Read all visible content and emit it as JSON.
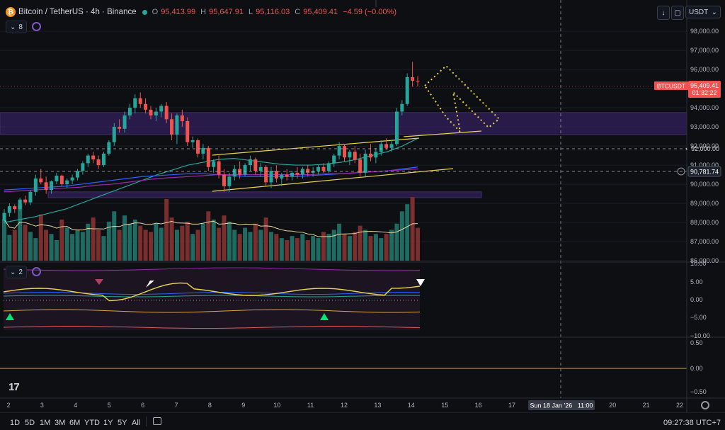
{
  "header": {
    "symbol_title": "Bitcoin / TetherUS · 4h · Binance",
    "ohlc": [
      {
        "k": "O",
        "v": "95,413.99"
      },
      {
        "k": "H",
        "v": "95,647.91"
      },
      {
        "k": "L",
        "v": "95,116.03"
      },
      {
        "k": "C",
        "v": "95,409.41"
      }
    ],
    "change": "−4.59 (−0.00%)",
    "indicator_count": "8",
    "currency": "USDT"
  },
  "oscillator_pane": {
    "indicator_count": "2"
  },
  "colors": {
    "up": "#26a69a",
    "down": "#ef5350",
    "zone": "#4b2a8c",
    "channel": "#e8d44d",
    "background": "#0e0f13"
  },
  "chart_data": [
    {
      "type": "candlestick",
      "symbol": "BTCUSDT",
      "timeframe": "4h",
      "price_axis": {
        "ticks": [
          "98,000.00",
          "97,000.00",
          "96,000.00",
          "95,000.00",
          "94,000.00",
          "93,000.00",
          "92,000.00",
          "91,000.00",
          "90,000.00",
          "89,000.00",
          "88,000.00",
          "87,000.00",
          "86,000.00"
        ],
        "range": [
          86000,
          98600
        ]
      },
      "time_axis": {
        "ticks": [
          "2",
          "3",
          "4",
          "5",
          "6",
          "7",
          "8",
          "9",
          "10",
          "11",
          "12",
          "13",
          "14",
          "15",
          "16",
          "17",
          "18",
          "19",
          "20",
          "21",
          "22"
        ],
        "crosshair_label": "Sun 18 Jan '26   11:00"
      },
      "last_price": {
        "label": "BTCUSDT",
        "value": "95,409.41",
        "countdown": "01:32:22"
      },
      "level_labels": [
        {
          "value": "92,000.00"
        },
        {
          "value": "90,781.74"
        }
      ],
      "zones": [
        {
          "from": 92600,
          "to": 93750
        },
        {
          "from": 89300,
          "to": 89600
        }
      ],
      "ohlc": [
        [
          88100,
          88700,
          87950,
          88500
        ],
        [
          88500,
          89000,
          88300,
          88850
        ],
        [
          88850,
          88950,
          88500,
          88700
        ],
        [
          88700,
          89300,
          88600,
          89200
        ],
        [
          89200,
          89400,
          88900,
          89050
        ],
        [
          89050,
          89700,
          88900,
          89600
        ],
        [
          89600,
          90500,
          89400,
          90300
        ],
        [
          90300,
          90800,
          90000,
          90100
        ],
        [
          90100,
          90400,
          89500,
          89700
        ],
        [
          89700,
          90200,
          89500,
          90150
        ],
        [
          90150,
          90600,
          90000,
          90450
        ],
        [
          90450,
          90500,
          89900,
          90000
        ],
        [
          90000,
          90300,
          89800,
          90200
        ],
        [
          90200,
          90500,
          90000,
          90350
        ],
        [
          90350,
          90800,
          90200,
          90700
        ],
        [
          90700,
          91200,
          90500,
          91100
        ],
        [
          91100,
          91600,
          90900,
          91500
        ],
        [
          91500,
          91700,
          91100,
          91300
        ],
        [
          91300,
          91500,
          90800,
          91000
        ],
        [
          91000,
          91700,
          90900,
          91600
        ],
        [
          91600,
          92300,
          91500,
          92200
        ],
        [
          92200,
          93200,
          92000,
          93000
        ],
        [
          93000,
          93400,
          92700,
          92900
        ],
        [
          92900,
          93800,
          92700,
          93600
        ],
        [
          93600,
          94200,
          93400,
          94000
        ],
        [
          94000,
          94700,
          93700,
          94500
        ],
        [
          94500,
          94800,
          94000,
          94200
        ],
        [
          94200,
          94500,
          93700,
          93900
        ],
        [
          93900,
          94100,
          93400,
          93600
        ],
        [
          93600,
          94000,
          93300,
          93800
        ],
        [
          93800,
          94200,
          93500,
          94100
        ],
        [
          94100,
          94300,
          93200,
          93400
        ],
        [
          93400,
          93700,
          92300,
          92600
        ],
        [
          92600,
          93700,
          92100,
          93600
        ],
        [
          93600,
          93900,
          93000,
          93300
        ],
        [
          93300,
          93500,
          92000,
          92200
        ],
        [
          92200,
          92500,
          91900,
          92300
        ],
        [
          92300,
          92400,
          91400,
          91600
        ],
        [
          91600,
          92100,
          91300,
          91900
        ],
        [
          91900,
          92000,
          90700,
          90900
        ],
        [
          90900,
          91300,
          90600,
          91200
        ],
        [
          91200,
          91500,
          90300,
          90500
        ],
        [
          90500,
          90800,
          89600,
          89900
        ],
        [
          89900,
          90600,
          89600,
          90400
        ],
        [
          90400,
          91000,
          90200,
          90800
        ],
        [
          90800,
          91200,
          90300,
          90500
        ],
        [
          90500,
          91100,
          90400,
          91000
        ],
        [
          91000,
          91500,
          90700,
          91300
        ],
        [
          91300,
          91400,
          90500,
          90700
        ],
        [
          90700,
          91100,
          90400,
          90900
        ],
        [
          90900,
          91000,
          89900,
          90100
        ],
        [
          90100,
          90900,
          89800,
          90700
        ],
        [
          90700,
          91000,
          90100,
          90300
        ],
        [
          90300,
          90600,
          89900,
          90500
        ],
        [
          90500,
          90800,
          90200,
          90400
        ],
        [
          90400,
          90700,
          90200,
          90600
        ],
        [
          90600,
          90900,
          90300,
          90500
        ],
        [
          90500,
          90900,
          90300,
          90800
        ],
        [
          90800,
          91000,
          90400,
          90600
        ],
        [
          90600,
          90900,
          90400,
          90700
        ],
        [
          90700,
          91000,
          90500,
          90900
        ],
        [
          90900,
          91100,
          90600,
          90700
        ],
        [
          90700,
          91200,
          90600,
          91100
        ],
        [
          91100,
          91600,
          90900,
          91500
        ],
        [
          91500,
          92200,
          91300,
          92000
        ],
        [
          92000,
          92100,
          91200,
          91400
        ],
        [
          91400,
          91800,
          91000,
          91700
        ],
        [
          91700,
          92000,
          91100,
          91300
        ],
        [
          91300,
          91600,
          90400,
          90600
        ],
        [
          90600,
          91800,
          90400,
          91600
        ],
        [
          91600,
          92100,
          91200,
          91400
        ],
        [
          91400,
          91900,
          91100,
          91700
        ],
        [
          91700,
          92300,
          91500,
          92100
        ],
        [
          92100,
          92400,
          91800,
          91900
        ],
        [
          91900,
          92300,
          91700,
          92100
        ],
        [
          92100,
          94000,
          92000,
          93800
        ],
        [
          93800,
          94400,
          93600,
          94200
        ],
        [
          94200,
          95800,
          94100,
          95600
        ],
        [
          95600,
          96400,
          95100,
          95413.99
        ],
        [
          95413.99,
          95647.91,
          95116.03,
          95409.41
        ]
      ],
      "moving_averages": [
        {
          "points": [
            88000,
            88150,
            88300,
            88500,
            88700,
            89000,
            89300,
            89600,
            89900,
            90200,
            90500,
            90750,
            91000,
            91150,
            91300,
            91350,
            91250,
            91150,
            91050,
            91000,
            91000,
            91050,
            91150,
            91300,
            91500,
            91700,
            92000,
            92400
          ]
        },
        {
          "points": [
            89700,
            89750,
            89800,
            89850,
            89900,
            90000,
            90100,
            90200,
            90300,
            90400,
            90450,
            90500,
            90550,
            90550,
            90500,
            90450,
            90400,
            90400,
            90400,
            90400,
            90450,
            90500,
            90550,
            90600,
            90650,
            90700,
            90800,
            90900
          ]
        },
        {
          "points": [
            89600,
            89650,
            89700,
            89750,
            89800,
            89850,
            89950,
            90000,
            90100,
            90200,
            90300,
            90350,
            90400,
            90450,
            90500,
            90500,
            90500,
            90500,
            90500,
            90500,
            90500,
            90550,
            90550,
            90600,
            90650,
            90700,
            90750,
            90800
          ]
        }
      ],
      "volume": [
        40,
        25,
        30,
        55,
        35,
        28,
        22,
        45,
        30,
        26,
        20,
        40,
        32,
        26,
        30,
        28,
        36,
        42,
        30,
        24,
        38,
        48,
        30,
        44,
        36,
        40,
        34,
        30,
        28,
        36,
        32,
        60,
        42,
        30,
        34,
        38,
        26,
        30,
        36,
        48,
        40,
        32,
        44,
        38,
        30,
        26,
        32,
        28,
        36,
        30,
        42,
        28,
        26,
        22,
        20,
        24,
        22,
        26,
        20,
        24,
        22,
        28,
        26,
        30,
        36,
        26,
        24,
        28,
        34,
        30,
        24,
        26,
        22,
        26,
        30,
        36,
        48,
        55,
        62,
        32
      ]
    }
  ]
}
